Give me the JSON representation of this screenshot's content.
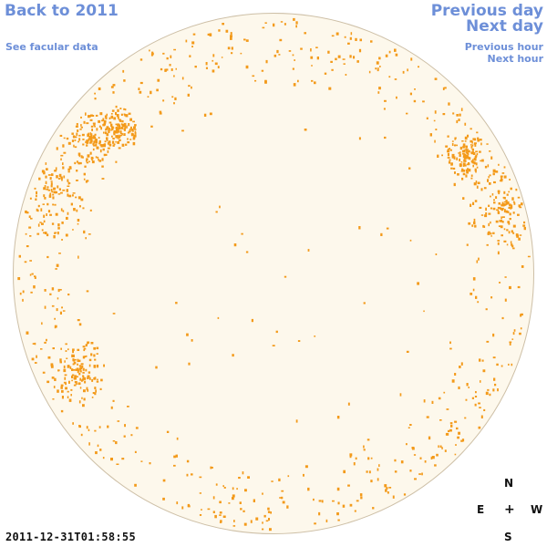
{
  "nav": {
    "back_label": "Back to 2011",
    "facular_label": "See facular data",
    "prev_day_label": "Previous day",
    "next_day_label": "Next day",
    "prev_hour_label": "Previous hour",
    "next_hour_label": "Next hour"
  },
  "compass": {
    "north": "N",
    "south": "S",
    "east": "E",
    "west": "W",
    "center": "+"
  },
  "timestamp": "2011-12-31T01:58:55",
  "colors": {
    "disk": "#fdf8ec",
    "facula": "#f39a1a",
    "link": "#6d8fd8",
    "limb": "#cdbfa6"
  }
}
